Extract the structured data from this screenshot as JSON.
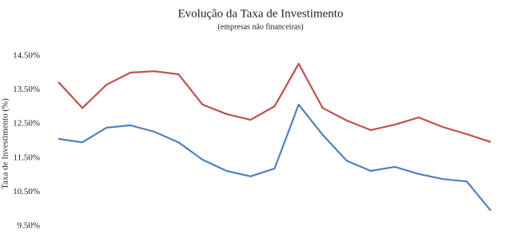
{
  "chart_data": {
    "type": "line",
    "title": "Evolução da Taxa de Investimento",
    "subtitle": "(empresas não financeiras)",
    "y_label": "Taxa de Investimento (%)",
    "categories": [
      null,
      null,
      null,
      null,
      null,
      null,
      null,
      null,
      null,
      null,
      null,
      null,
      null,
      null,
      null,
      null,
      null,
      null,
      null
    ],
    "series": [
      {
        "color": "#c0504d",
        "values": [
          13.73,
          12.97,
          13.65,
          14.01,
          14.05,
          13.96,
          13.07,
          12.79,
          12.62,
          13.02,
          14.27,
          12.97,
          12.6,
          12.32,
          12.48,
          12.69,
          12.41,
          12.2,
          11.97
        ]
      },
      {
        "color": "#4f81bd",
        "values": [
          12.06,
          11.96,
          12.39,
          12.46,
          12.27,
          11.96,
          11.45,
          11.12,
          10.96,
          11.19,
          13.07,
          12.18,
          11.42,
          11.12,
          11.24,
          11.03,
          10.88,
          10.81,
          9.95
        ]
      }
    ],
    "ylim": [
      9.5,
      14.5
    ],
    "yticks": [
      {
        "value": 9.5,
        "label": "9.50%"
      },
      {
        "value": 10.5,
        "label": "10.50%"
      },
      {
        "value": 11.5,
        "label": "11.50%"
      },
      {
        "value": 12.5,
        "label": "12.50%"
      },
      {
        "value": 13.5,
        "label": "13.50%"
      },
      {
        "value": 14.5,
        "label": "14.50%"
      }
    ],
    "grid": false
  }
}
